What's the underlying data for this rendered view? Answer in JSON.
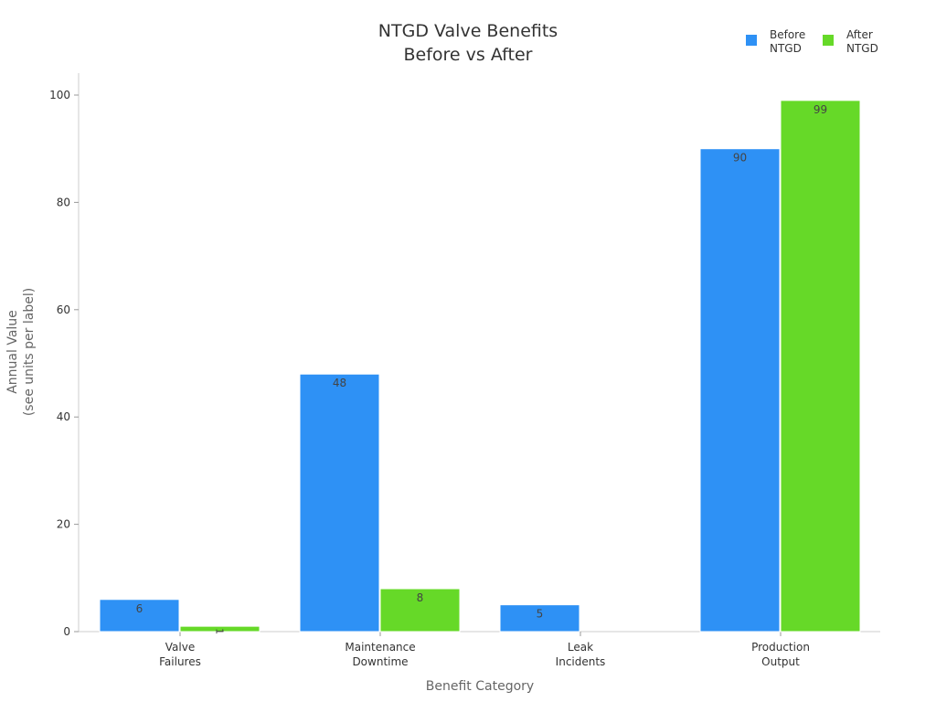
{
  "chart_data": {
    "type": "bar",
    "title": [
      "NTGD Valve Benefits",
      "Before vs After"
    ],
    "xlabel": "Benefit Category",
    "ylabel": [
      "Annual Value",
      "(see units per label)"
    ],
    "categories": [
      [
        "Valve",
        "Failures"
      ],
      [
        "Maintenance",
        "Downtime"
      ],
      [
        "Leak",
        "Incidents"
      ],
      [
        "Production",
        "Output"
      ]
    ],
    "series": [
      {
        "name": [
          "Before",
          "NTGD"
        ],
        "color": "#2e91f5",
        "values": [
          6,
          48,
          5,
          90
        ],
        "labels": [
          "6",
          "48",
          "5",
          "90"
        ]
      },
      {
        "name": [
          "After",
          "NTGD"
        ],
        "color": "#66d928",
        "values": [
          1,
          8,
          0,
          99
        ],
        "labels": [
          "1",
          "8",
          "",
          "99"
        ]
      }
    ],
    "ylim": [
      0,
      100
    ],
    "yticks": [
      0,
      20,
      40,
      60,
      80,
      100
    ],
    "grid": false,
    "legend": "top-right"
  }
}
